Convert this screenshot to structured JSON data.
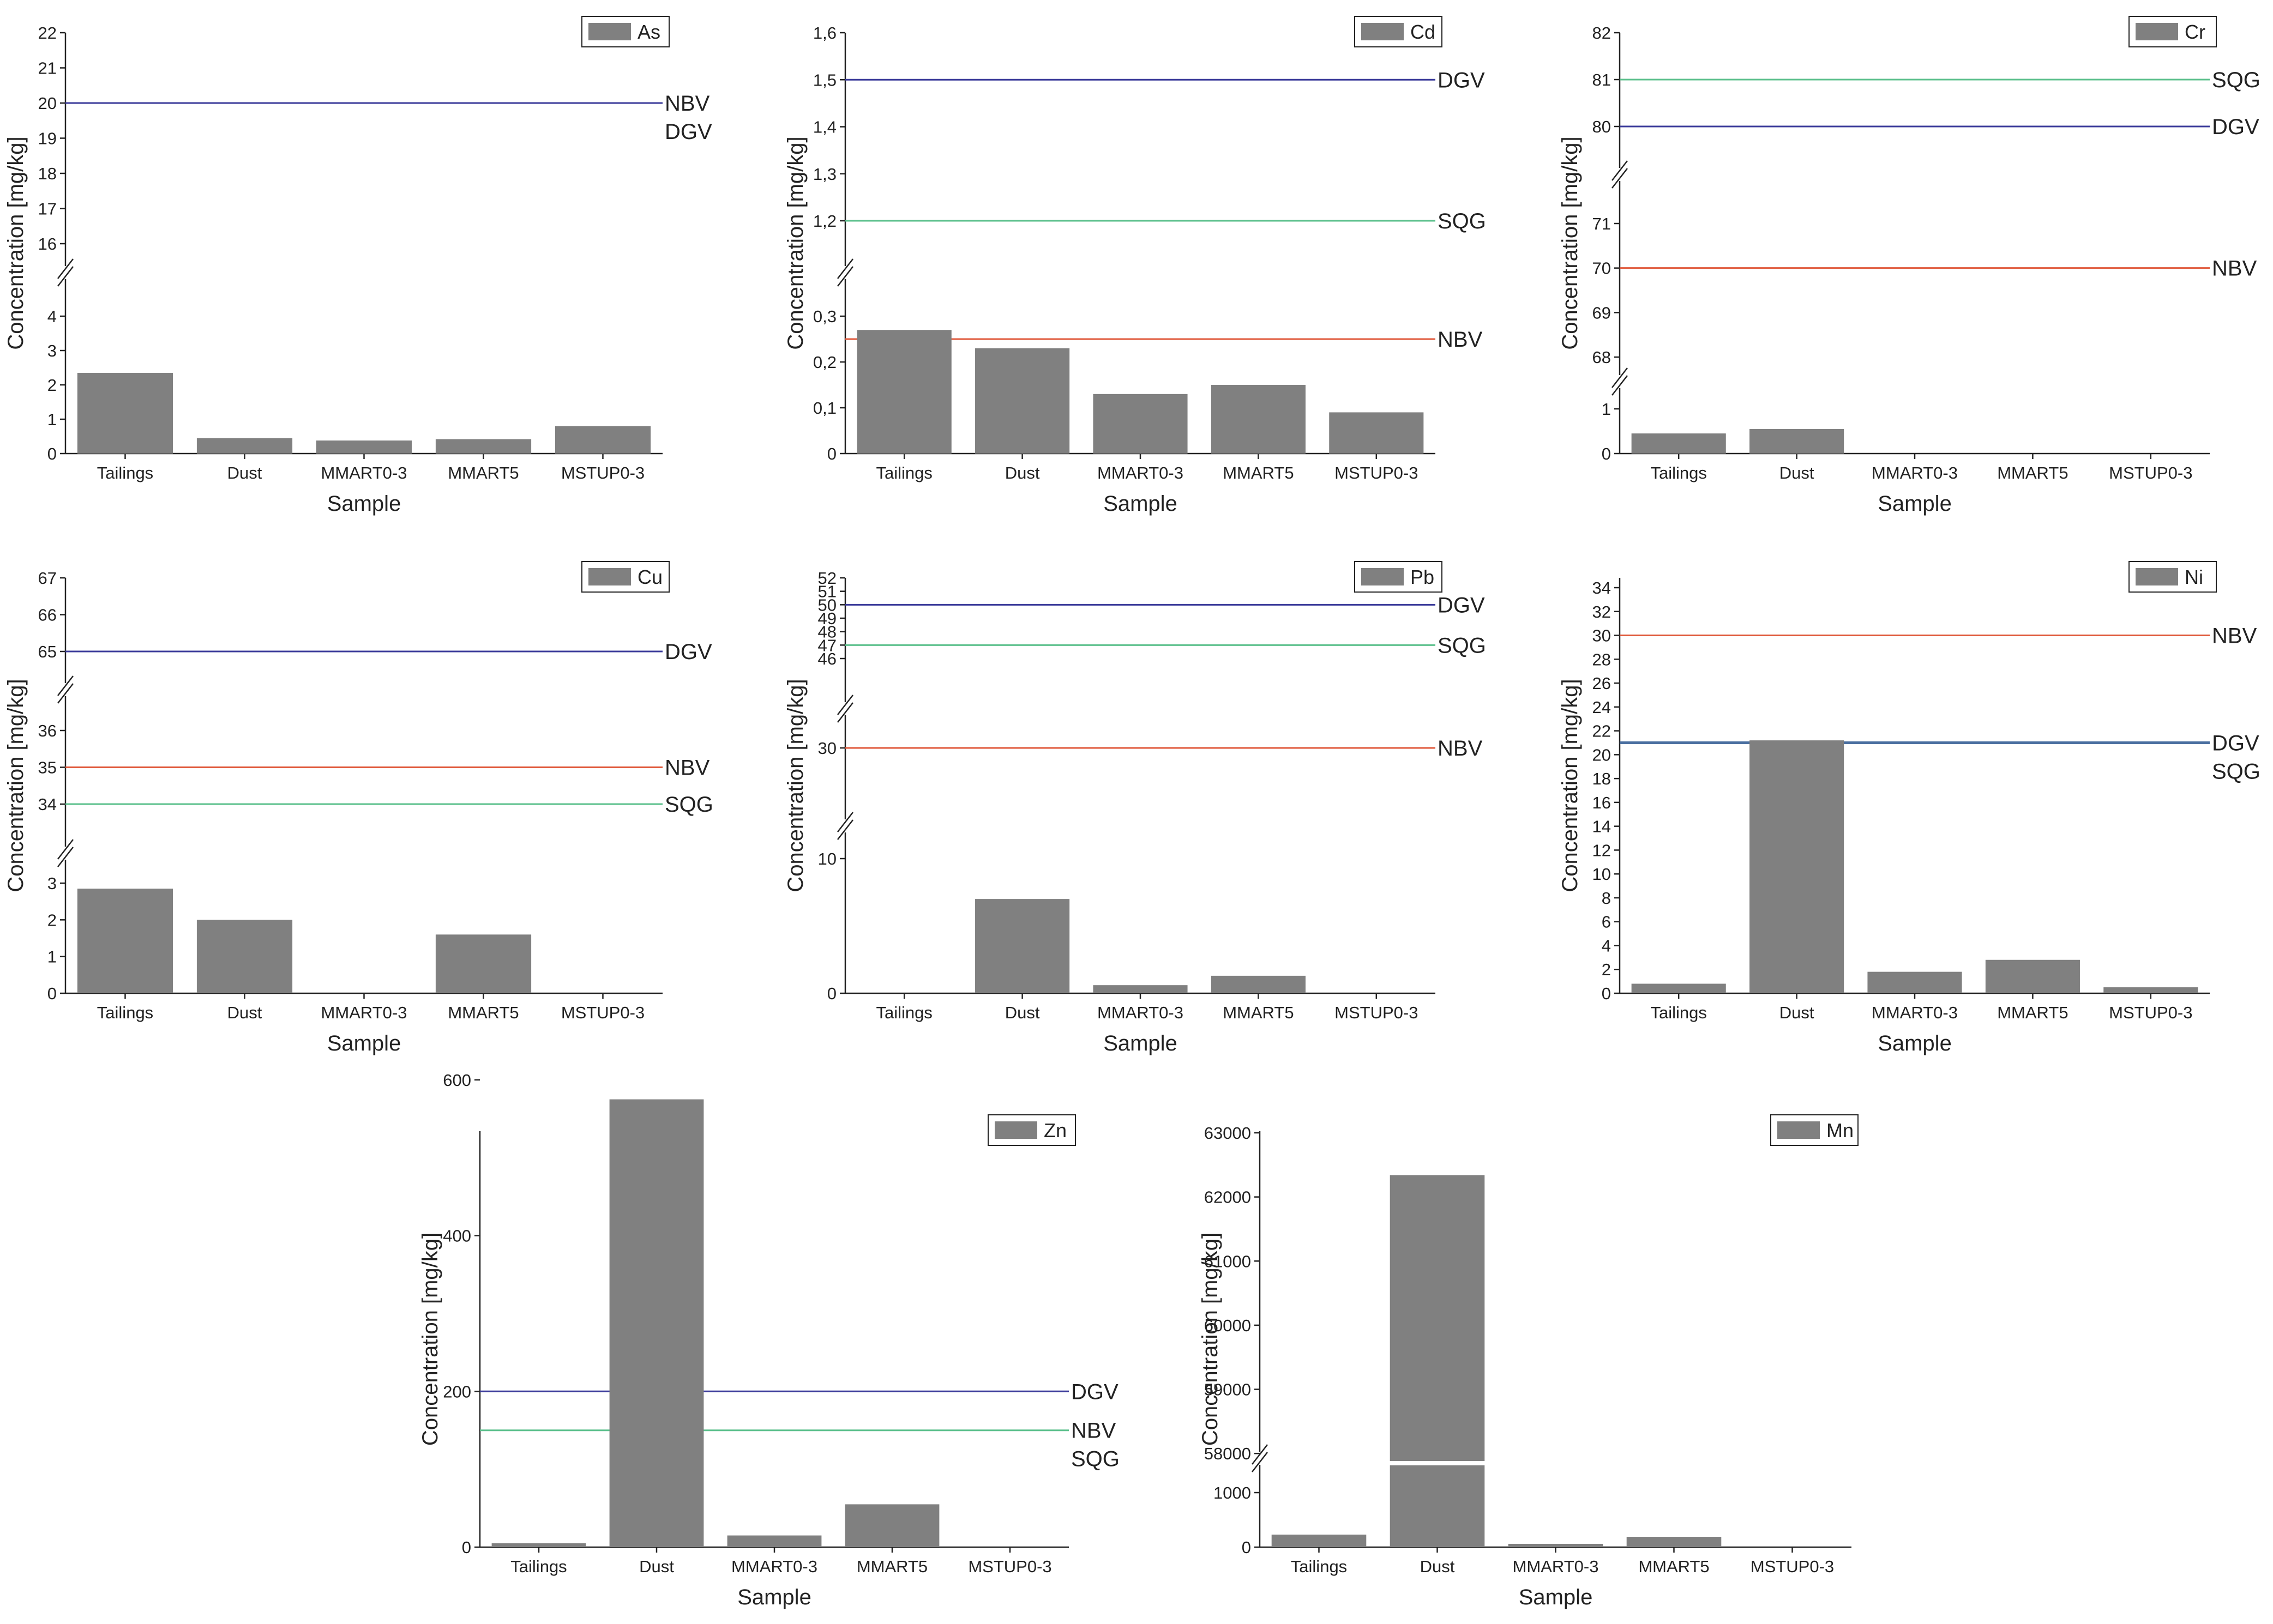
{
  "figure": {
    "xlabel": "Sample",
    "ylabel": "Concentration [mg/kg]",
    "categories": [
      "Tailings",
      "Dust",
      "MMART0-3",
      "MMART5",
      "MSTUP0-3"
    ],
    "bar_color": "#808080",
    "line_colors": {
      "blue": "#3b3b9a",
      "red": "#e05a3c",
      "green": "#5cc08c",
      "steel": "#4a6fa0"
    }
  },
  "chart_data": [
    {
      "id": "as",
      "type": "bar",
      "legend": "As",
      "categories": [
        "Tailings",
        "Dust",
        "MMART0-3",
        "MMART5",
        "MSTUP0-3"
      ],
      "series": [
        {
          "name": "As",
          "values": [
            2.35,
            0.45,
            0.38,
            0.42,
            0.8
          ]
        }
      ],
      "xlabel": "Sample",
      "ylabel": "Concentration [mg/kg]",
      "ylim": [
        0,
        22
      ],
      "axis_break": [
        4,
        16
      ],
      "yticks": [
        0,
        1,
        2,
        3,
        4,
        16,
        17,
        18,
        19,
        20,
        21,
        22
      ],
      "ytick_labels": [
        "0",
        "1",
        "2",
        "3",
        "4",
        "16",
        "17",
        "18",
        "19",
        "20",
        "21",
        "22"
      ],
      "reference_lines": [
        {
          "value": 20,
          "color": "#3b3b9a",
          "labels": [
            "NBV",
            "DGV"
          ]
        }
      ],
      "legend_position": "top-right"
    },
    {
      "id": "cd",
      "type": "bar",
      "legend": "Cd",
      "categories": [
        "Tailings",
        "Dust",
        "MMART0-3",
        "MMART5",
        "MSTUP0-3"
      ],
      "series": [
        {
          "name": "Cd",
          "values": [
            0.27,
            0.23,
            0.13,
            0.15,
            0.09
          ]
        }
      ],
      "xlabel": "Sample",
      "ylabel": "Concentration [mg/kg]",
      "ylim": [
        0,
        1.6
      ],
      "axis_break": [
        0.3,
        1.2
      ],
      "yticks": [
        0,
        0.1,
        0.2,
        0.3,
        1.2,
        1.3,
        1.4,
        1.5,
        1.6
      ],
      "ytick_labels": [
        "0",
        "0,1",
        "0,2",
        "0,3",
        "1,2",
        "1,3",
        "1,4",
        "1,5",
        "1,6"
      ],
      "reference_lines": [
        {
          "value": 1.5,
          "color": "#3b3b9a",
          "labels": [
            "DGV"
          ]
        },
        {
          "value": 1.2,
          "color": "#5cc08c",
          "labels": [
            "SQG"
          ]
        },
        {
          "value": 0.25,
          "color": "#e05a3c",
          "labels": [
            "NBV"
          ]
        }
      ],
      "legend_position": "top-right"
    },
    {
      "id": "cr",
      "type": "bar",
      "legend": "Cr",
      "categories": [
        "Tailings",
        "Dust",
        "MMART0-3",
        "MMART5",
        "MSTUP0-3"
      ],
      "series": [
        {
          "name": "Cr",
          "values": [
            0.45,
            0.55,
            0,
            0,
            0
          ]
        }
      ],
      "xlabel": "Sample",
      "ylabel": "Concentration [mg/kg]",
      "ylim": [
        0,
        82
      ],
      "axis_breaks": [
        [
          1,
          68
        ],
        [
          71,
          80
        ]
      ],
      "yticks": [
        0,
        1,
        68,
        69,
        70,
        71,
        80,
        81,
        82
      ],
      "ytick_labels": [
        "0",
        "1",
        "68",
        "69",
        "70",
        "71",
        "80",
        "81",
        "82"
      ],
      "reference_lines": [
        {
          "value": 81,
          "color": "#5cc08c",
          "labels": [
            "SQG"
          ]
        },
        {
          "value": 80,
          "color": "#3b3b9a",
          "labels": [
            "DGV"
          ]
        },
        {
          "value": 70,
          "color": "#e05a3c",
          "labels": [
            "NBV"
          ]
        }
      ],
      "legend_position": "top-right"
    },
    {
      "id": "cu",
      "type": "bar",
      "legend": "Cu",
      "categories": [
        "Tailings",
        "Dust",
        "MMART0-3",
        "MMART5",
        "MSTUP0-3"
      ],
      "series": [
        {
          "name": "Cu",
          "values": [
            2.85,
            2.0,
            0,
            1.6,
            0
          ]
        }
      ],
      "xlabel": "Sample",
      "ylabel": "Concentration [mg/kg]",
      "ylim": [
        0,
        67
      ],
      "axis_breaks": [
        [
          3,
          34
        ],
        [
          36,
          65
        ]
      ],
      "yticks": [
        0,
        1,
        2,
        3,
        34,
        35,
        36,
        65,
        66,
        67
      ],
      "ytick_labels": [
        "0",
        "1",
        "2",
        "3",
        "34",
        "35",
        "36",
        "65",
        "66",
        "67"
      ],
      "reference_lines": [
        {
          "value": 65,
          "color": "#3b3b9a",
          "labels": [
            "DGV"
          ]
        },
        {
          "value": 35,
          "color": "#e05a3c",
          "labels": [
            "NBV"
          ]
        },
        {
          "value": 34,
          "color": "#5cc08c",
          "labels": [
            "SQG"
          ]
        }
      ],
      "legend_position": "top-right"
    },
    {
      "id": "pb",
      "type": "bar",
      "legend": "Pb",
      "categories": [
        "Tailings",
        "Dust",
        "MMART0-3",
        "MMART5",
        "MSTUP0-3"
      ],
      "series": [
        {
          "name": "Pb",
          "values": [
            0,
            7,
            0.6,
            1.3,
            0
          ]
        }
      ],
      "xlabel": "Sample",
      "ylabel": "Concentration [mg/kg]",
      "ylim": [
        0,
        52
      ],
      "axis_breaks": [
        [
          10,
          30
        ],
        [
          30,
          46
        ]
      ],
      "yticks": [
        0,
        10,
        30,
        46,
        47,
        48,
        49,
        50,
        51,
        52
      ],
      "ytick_labels": [
        "0",
        "10",
        "30",
        "46",
        "47",
        "48",
        "49",
        "50",
        "51",
        "52"
      ],
      "reference_lines": [
        {
          "value": 50,
          "color": "#3b3b9a",
          "labels": [
            "DGV"
          ]
        },
        {
          "value": 47,
          "color": "#5cc08c",
          "labels": [
            "SQG"
          ]
        },
        {
          "value": 30,
          "color": "#e05a3c",
          "labels": [
            "NBV"
          ]
        }
      ],
      "legend_position": "top-right"
    },
    {
      "id": "ni",
      "type": "bar",
      "legend": "Ni",
      "categories": [
        "Tailings",
        "Dust",
        "MMART0-3",
        "MMART5",
        "MSTUP0-3"
      ],
      "series": [
        {
          "name": "Ni",
          "values": [
            0.8,
            21.2,
            1.8,
            2.8,
            0.5
          ]
        }
      ],
      "xlabel": "Sample",
      "ylabel": "Concentration [mg/kg]",
      "ylim": [
        0,
        35
      ],
      "yticks": [
        0,
        2,
        4,
        6,
        8,
        10,
        12,
        14,
        16,
        18,
        20,
        22,
        24,
        26,
        28,
        30,
        32,
        34
      ],
      "ytick_labels": [
        "0",
        "2",
        "4",
        "6",
        "8",
        "10",
        "12",
        "14",
        "16",
        "18",
        "20",
        "22",
        "24",
        "26",
        "28",
        "30",
        "32",
        "34"
      ],
      "reference_lines": [
        {
          "value": 30,
          "color": "#e05a3c",
          "labels": [
            "NBV"
          ]
        },
        {
          "value": 21,
          "color": "#4a6fa0",
          "labels": [
            "DGV",
            "SQG"
          ]
        }
      ],
      "legend_position": "top-right"
    },
    {
      "id": "zn",
      "type": "bar",
      "legend": "Zn",
      "categories": [
        "Tailings",
        "Dust",
        "MMART0-3",
        "MMART5",
        "MSTUP0-3"
      ],
      "series": [
        {
          "name": "Zn",
          "values": [
            5,
            575,
            15,
            55,
            0
          ]
        }
      ],
      "xlabel": "Sample",
      "ylabel": "Concentration [mg/kg]",
      "ylim": [
        0,
        700
      ],
      "yticks": [
        0,
        200,
        400,
        600
      ],
      "ytick_labels": [
        "0",
        "200",
        "400",
        "600"
      ],
      "reference_lines": [
        {
          "value": 200,
          "color": "#3b3b9a",
          "labels": [
            "DGV"
          ]
        },
        {
          "value": 150,
          "color": "#5cc08c",
          "labels": [
            "NBV",
            "SQG"
          ]
        }
      ],
      "legend_position": "top-right"
    },
    {
      "id": "mn",
      "type": "bar",
      "legend": "Mn",
      "categories": [
        "Tailings",
        "Dust",
        "MMART0-3",
        "MMART5",
        "MSTUP0-3"
      ],
      "series": [
        {
          "name": "Mn",
          "values": [
            230,
            62340,
            60,
            190,
            0
          ]
        }
      ],
      "xlabel": "Sample",
      "ylabel": "Concentration [mg/kg]",
      "ylim": [
        0,
        63000
      ],
      "axis_break": [
        1000,
        57500
      ],
      "yticks": [
        0,
        1000,
        58000,
        59000,
        60000,
        61000,
        62000,
        63000
      ],
      "ytick_labels": [
        "0",
        "1000",
        "58000",
        "59000",
        "60000",
        "61000",
        "62000",
        "63000"
      ],
      "reference_lines": [],
      "legend_position": "top-right"
    }
  ]
}
